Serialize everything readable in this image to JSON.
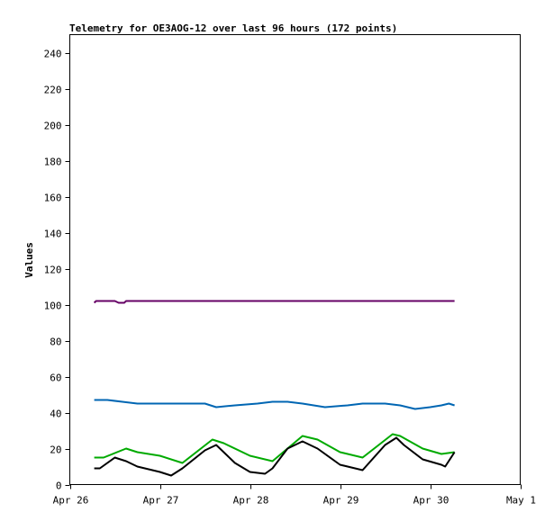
{
  "chart_data": {
    "type": "line",
    "title": "Telemetry for OE3AOG-12 over last 96 hours (172 points)",
    "xlabel": "",
    "ylabel": "Values",
    "ylim": [
      0,
      250
    ],
    "yticks": [
      0,
      20,
      40,
      60,
      80,
      100,
      120,
      140,
      160,
      180,
      200,
      220,
      240
    ],
    "xlim": [
      "2026-04-26T00:00",
      "2026-05-01T00:00"
    ],
    "xticks": [
      {
        "t": "2026-04-26T00:00",
        "label": "Apr 26"
      },
      {
        "t": "2026-04-27T00:00",
        "label": "Apr 27"
      },
      {
        "t": "2026-04-28T00:00",
        "label": "Apr 28"
      },
      {
        "t": "2026-04-29T00:00",
        "label": "Apr 29"
      },
      {
        "t": "2026-04-30T00:00",
        "label": "Apr 30"
      },
      {
        "t": "2026-05-01T00:00",
        "label": "May 1"
      }
    ],
    "grid": false,
    "legend": "none",
    "series": [
      {
        "color": "#660066",
        "x": [
          "2026-04-26T06:30",
          "2026-04-26T07:00",
          "2026-04-26T12:00",
          "2026-04-26T13:00",
          "2026-04-26T14:30",
          "2026-04-26T15:00",
          "2026-04-30T06:30"
        ],
        "y": [
          101,
          102,
          102,
          101,
          101,
          102,
          102
        ]
      },
      {
        "color": "#0066b3",
        "x": [
          "2026-04-26T06:30",
          "2026-04-26T10:00",
          "2026-04-26T14:00",
          "2026-04-26T18:00",
          "2026-04-27T04:00",
          "2026-04-27T12:00",
          "2026-04-27T15:00",
          "2026-04-27T20:00",
          "2026-04-28T02:00",
          "2026-04-28T06:00",
          "2026-04-28T10:00",
          "2026-04-28T14:00",
          "2026-04-28T20:00",
          "2026-04-29T02:00",
          "2026-04-29T06:00",
          "2026-04-29T12:00",
          "2026-04-29T16:00",
          "2026-04-29T20:00",
          "2026-04-30T00:00",
          "2026-04-30T03:00",
          "2026-04-30T05:00",
          "2026-04-30T06:30"
        ],
        "y": [
          47,
          47,
          46,
          45,
          45,
          45,
          43,
          44,
          45,
          46,
          46,
          45,
          43,
          44,
          45,
          45,
          44,
          42,
          43,
          44,
          45,
          44
        ]
      },
      {
        "color": "#00aa00",
        "x": [
          "2026-04-26T06:30",
          "2026-04-26T09:00",
          "2026-04-26T15:00",
          "2026-04-26T18:00",
          "2026-04-27T00:00",
          "2026-04-27T06:00",
          "2026-04-27T14:00",
          "2026-04-27T17:00",
          "2026-04-28T00:00",
          "2026-04-28T06:00",
          "2026-04-28T14:00",
          "2026-04-28T18:00",
          "2026-04-29T00:00",
          "2026-04-29T06:00",
          "2026-04-29T14:00",
          "2026-04-29T16:00",
          "2026-04-29T22:00",
          "2026-04-30T03:00",
          "2026-04-30T06:30"
        ],
        "y": [
          15,
          15,
          20,
          18,
          16,
          12,
          25,
          23,
          16,
          13,
          27,
          25,
          18,
          15,
          28,
          27,
          20,
          17,
          18
        ]
      },
      {
        "color": "#000000",
        "x": [
          "2026-04-26T06:30",
          "2026-04-26T08:00",
          "2026-04-26T12:00",
          "2026-04-26T15:00",
          "2026-04-26T18:00",
          "2026-04-27T00:00",
          "2026-04-27T03:00",
          "2026-04-27T06:00",
          "2026-04-27T12:00",
          "2026-04-27T15:00",
          "2026-04-27T20:00",
          "2026-04-28T00:00",
          "2026-04-28T04:00",
          "2026-04-28T06:00",
          "2026-04-28T10:00",
          "2026-04-28T14:00",
          "2026-04-28T18:00",
          "2026-04-29T00:00",
          "2026-04-29T06:00",
          "2026-04-29T12:00",
          "2026-04-29T15:00",
          "2026-04-29T17:00",
          "2026-04-29T22:00",
          "2026-04-30T03:00",
          "2026-04-30T04:00",
          "2026-04-30T06:30"
        ],
        "y": [
          9,
          9,
          15,
          13,
          10,
          7,
          5,
          9,
          19,
          22,
          12,
          7,
          6,
          9,
          20,
          24,
          20,
          11,
          8,
          22,
          26,
          22,
          14,
          11,
          10,
          18
        ]
      }
    ]
  }
}
